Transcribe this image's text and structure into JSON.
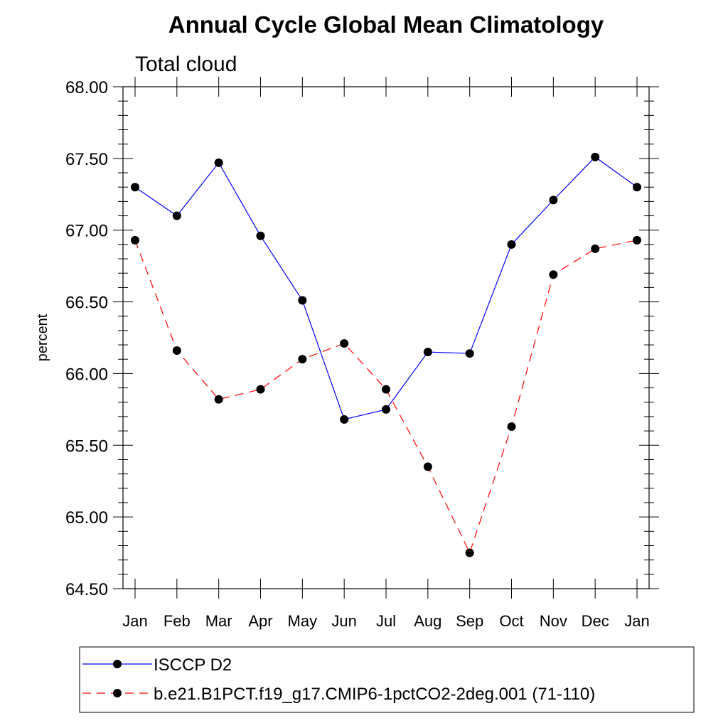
{
  "chart_data": {
    "type": "line",
    "title": "Annual Cycle Global Mean Climatology",
    "subtitle": "Total cloud",
    "xlabel": "",
    "ylabel": "percent",
    "categories": [
      "Jan",
      "Feb",
      "Mar",
      "Apr",
      "May",
      "Jun",
      "Jul",
      "Aug",
      "Sep",
      "Oct",
      "Nov",
      "Dec",
      "Jan"
    ],
    "ylim": [
      64.5,
      68.0
    ],
    "yticks": [
      "64.50",
      "65.00",
      "65.50",
      "66.00",
      "66.50",
      "67.00",
      "67.50",
      "68.00"
    ],
    "ytick_values": [
      64.5,
      65.0,
      65.5,
      66.0,
      66.5,
      67.0,
      67.5,
      68.0
    ],
    "series": [
      {
        "name": "ISCCP D2",
        "color": "#0000ff",
        "dash": "solid",
        "values": [
          67.3,
          67.1,
          67.47,
          66.96,
          66.51,
          65.68,
          65.75,
          66.15,
          66.14,
          66.9,
          67.21,
          67.51,
          67.3
        ]
      },
      {
        "name": "b.e21.B1PCT.f19_g17.CMIP6-1pctCO2-2deg.001 (71-110)",
        "color": "#ff0000",
        "dash": "dashed",
        "values": [
          66.93,
          66.16,
          65.82,
          65.89,
          66.1,
          66.21,
          65.89,
          65.35,
          64.75,
          65.63,
          66.69,
          66.87,
          66.93
        ]
      }
    ],
    "legend_position": "bottom"
  }
}
